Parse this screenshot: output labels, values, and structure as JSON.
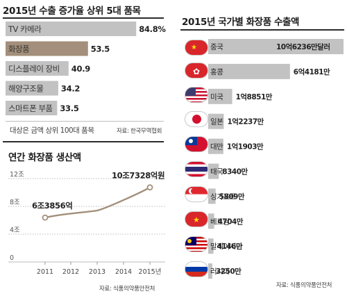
{
  "colors": {
    "bar": "#c2c2c2",
    "highlight_bar": "#a38f7b",
    "line": "#a38f7b",
    "axis": "#bbbbbb"
  },
  "chart_data": [
    {
      "type": "bar",
      "orientation": "horizontal",
      "title": "2015년 수출 증가율 상위 5대 품목",
      "categories": [
        "TV 카메라",
        "화장품",
        "디스플레이 장비",
        "해양구조물",
        "스마트폰 부품"
      ],
      "values": [
        84.8,
        53.5,
        40.9,
        34.2,
        33.5
      ],
      "value_labels": [
        "84.8%",
        "53.5",
        "40.9",
        "34.2",
        "33.5"
      ],
      "highlight": "화장품",
      "note": "대상은 금액 상위 100대 품목",
      "source": "자료: 한국무역협회"
    },
    {
      "type": "line",
      "title": "연간 화장품 생산액",
      "x": [
        "2011",
        "2012",
        "2013",
        "2014",
        "2015년"
      ],
      "values": [
        6.3856,
        6.8,
        7.4,
        8.5,
        10.7328
      ],
      "ylim": [
        0,
        12
      ],
      "yticks": [
        "0",
        "4조",
        "8조",
        "12조"
      ],
      "annotations": [
        "6조3856억",
        "10조7328억원"
      ],
      "source": "자료: 식품의약품안전처"
    },
    {
      "type": "bar",
      "orientation": "horizontal",
      "title": "2015년 국가별 화장품 수출액",
      "categories": [
        "중국",
        "홍콩",
        "미국",
        "일본",
        "대만",
        "태국",
        "싱가포르",
        "베트남",
        "말레이시아",
        "러시아"
      ],
      "values": [
        106236,
        64181,
        18851,
        12237,
        11903,
        8340,
        5809,
        4704,
        4146,
        3250
      ],
      "value_labels": [
        "10억6236만달러",
        "6억4181만",
        "1억8851만",
        "1억2237만",
        "1억1903만",
        "8340만",
        "5809만",
        "4704만",
        "4146만",
        "3250만"
      ],
      "flags": [
        "china-flag-icon",
        "hong-kong-flag-icon",
        "usa-flag-icon",
        "japan-flag-icon",
        "taiwan-flag-icon",
        "thailand-flag-icon",
        "singapore-flag-icon",
        "vietnam-flag-icon",
        "malaysia-flag-icon",
        "russia-flag-icon"
      ],
      "source": "자료: 식품의약품안전처"
    }
  ]
}
